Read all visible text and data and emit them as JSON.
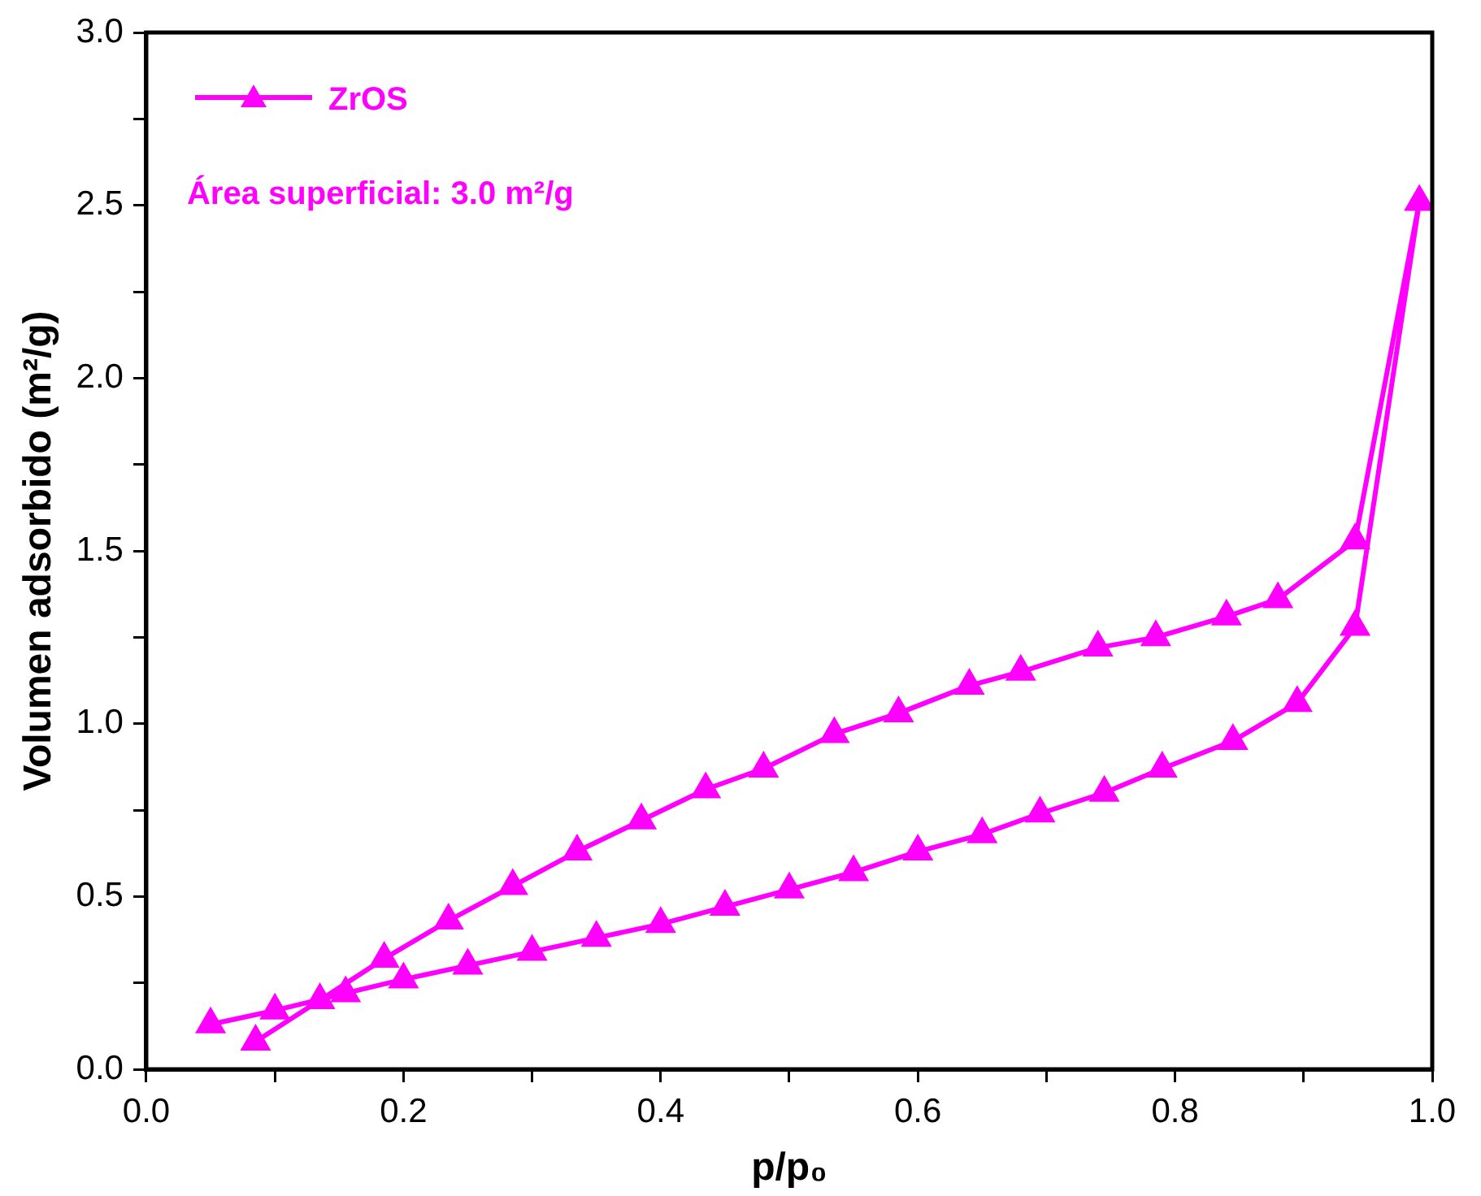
{
  "chart_data": {
    "type": "line",
    "xlabel": "p/p₀",
    "ylabel": "Volumen adsorbido (m²/g)",
    "annotations": [
      "Área superficial: 3.0 m²/g"
    ],
    "series": [
      {
        "name": "ZrOS",
        "color": "#ff00ff",
        "x": [
          0.05,
          0.1,
          0.155,
          0.2,
          0.25,
          0.3,
          0.35,
          0.4,
          0.45,
          0.5,
          0.55,
          0.6,
          0.65,
          0.695,
          0.745,
          0.79,
          0.845,
          0.895,
          0.94,
          0.99,
          0.94,
          0.88,
          0.84,
          0.785,
          0.74,
          0.68,
          0.64,
          0.585,
          0.535,
          0.48,
          0.435,
          0.385,
          0.335,
          0.285,
          0.235,
          0.185,
          0.135,
          0.085
        ],
        "values": [
          0.13,
          0.17,
          0.22,
          0.26,
          0.3,
          0.34,
          0.38,
          0.42,
          0.47,
          0.52,
          0.57,
          0.63,
          0.68,
          0.74,
          0.8,
          0.87,
          0.95,
          1.06,
          1.28,
          2.51,
          1.53,
          1.36,
          1.31,
          1.25,
          1.22,
          1.15,
          1.11,
          1.03,
          0.97,
          0.87,
          0.81,
          0.72,
          0.63,
          0.53,
          0.43,
          0.32,
          0.2,
          0.08
        ]
      }
    ],
    "xlim": [
      0,
      1
    ],
    "ylim": [
      0,
      3
    ],
    "xticks": [
      {
        "value": 0,
        "label": "0.0"
      },
      {
        "value": 0.1,
        "label": null
      },
      0.2,
      {
        "value": 0.3,
        "label": null
      },
      0.4,
      {
        "value": 0.5,
        "label": null
      },
      0.6,
      {
        "value": 0.7,
        "label": null
      },
      0.8,
      {
        "value": 0.9,
        "label": null
      },
      {
        "value": 1,
        "label": "1.0"
      }
    ],
    "yticks": [
      {
        "value": 0,
        "label": "0.0"
      },
      {
        "value": 0.25,
        "label": null
      },
      0.5,
      {
        "value": 0.75,
        "label": null
      },
      {
        "value": 1,
        "label": "1.0"
      },
      {
        "value": 1.25,
        "label": null
      },
      1.5,
      {
        "value": 1.75,
        "label": null
      },
      {
        "value": 2,
        "label": "2.0"
      },
      {
        "value": 2.25,
        "label": null
      },
      2.5,
      {
        "value": 2.75,
        "label": null
      },
      {
        "value": 3,
        "label": "3.0"
      }
    ],
    "grid": false,
    "legend": "top left",
    "marker": "triangle",
    "line_style": "solid"
  }
}
